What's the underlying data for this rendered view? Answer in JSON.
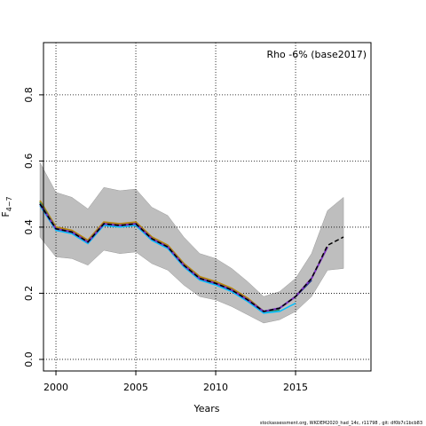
{
  "chart_data": {
    "type": "line",
    "annotation": "Rho -6% (base2017)",
    "xlabel": "Years",
    "ylabel": {
      "main": "F",
      "sub": "4−7"
    },
    "footnote": "stockassessment.org, WKDEM2020_had_14c, r11798 , git: df0b7c1bcb83",
    "x": [
      1999,
      2000,
      2001,
      2002,
      2003,
      2004,
      2005,
      2006,
      2007,
      2008,
      2009,
      2010,
      2011,
      2012,
      2013,
      2014,
      2015,
      2016,
      2017,
      2018
    ],
    "band": {
      "color": "#bebebe",
      "upper": [
        0.595,
        0.505,
        0.49,
        0.455,
        0.52,
        0.51,
        0.515,
        0.46,
        0.435,
        0.37,
        0.32,
        0.305,
        0.275,
        0.235,
        0.19,
        0.205,
        0.245,
        0.32,
        0.45,
        0.49
      ],
      "lower": [
        0.37,
        0.31,
        0.305,
        0.285,
        0.33,
        0.32,
        0.325,
        0.29,
        0.27,
        0.225,
        0.19,
        0.18,
        0.16,
        0.135,
        0.11,
        0.12,
        0.145,
        0.19,
        0.27,
        0.275
      ]
    },
    "series": [
      {
        "color": "#b8860b",
        "width": 2,
        "values": [
          0.48,
          0.4,
          0.39,
          0.36,
          0.415,
          0.41,
          0.415,
          0.37,
          0.345,
          0.29,
          0.25,
          0.235,
          0.215,
          0.185,
          0.145,
          null,
          null,
          null,
          null,
          null
        ]
      },
      {
        "color": "#2e8b57",
        "width": 2,
        "values": [
          0.475,
          0.395,
          0.385,
          0.355,
          0.41,
          0.405,
          0.41,
          0.365,
          0.34,
          0.285,
          0.245,
          0.23,
          0.21,
          0.18,
          0.145,
          0.15,
          null,
          null,
          null,
          null
        ]
      },
      {
        "color": "#00bfff",
        "width": 1.5,
        "values": [
          0.465,
          0.39,
          0.38,
          0.35,
          0.405,
          0.4,
          0.405,
          0.36,
          0.335,
          0.28,
          0.24,
          0.225,
          0.205,
          0.175,
          0.14,
          0.145,
          0.17,
          null,
          null,
          null
        ]
      },
      {
        "color": "#1e3a8a",
        "width": 2,
        "values": [
          0.47,
          0.395,
          0.385,
          0.355,
          0.41,
          0.405,
          0.41,
          0.365,
          0.34,
          0.285,
          0.245,
          0.23,
          0.21,
          0.18,
          0.145,
          0.155,
          0.19,
          0.24,
          null,
          null
        ]
      },
      {
        "color": "#7b2fbe",
        "width": 2,
        "values": [
          0.47,
          0.395,
          0.385,
          0.355,
          0.41,
          0.405,
          0.41,
          0.365,
          0.34,
          0.285,
          0.245,
          0.23,
          0.21,
          0.18,
          0.145,
          0.155,
          0.19,
          0.245,
          0.34,
          null
        ]
      },
      {
        "color": "#000000",
        "width": 1.5,
        "dashed": true,
        "values": [
          0.47,
          0.395,
          0.385,
          0.355,
          0.41,
          0.405,
          0.41,
          0.365,
          0.34,
          0.285,
          0.245,
          0.23,
          0.21,
          0.18,
          0.145,
          0.155,
          0.19,
          0.245,
          0.345,
          0.37
        ]
      }
    ],
    "xlim": [
      1999.22,
      2019.72
    ],
    "ylim": [
      -0.035,
      0.958
    ],
    "xticks": [
      2000,
      2005,
      2010,
      2015
    ],
    "yticks": [
      {
        "value": 0,
        "label": "0.0"
      },
      {
        "value": 0.2,
        "label": "0.2"
      },
      {
        "value": 0.4,
        "label": "0.4"
      },
      {
        "value": 0.6,
        "label": "0.6"
      },
      {
        "value": 0.8,
        "label": "0.8"
      }
    ],
    "grid": true
  }
}
